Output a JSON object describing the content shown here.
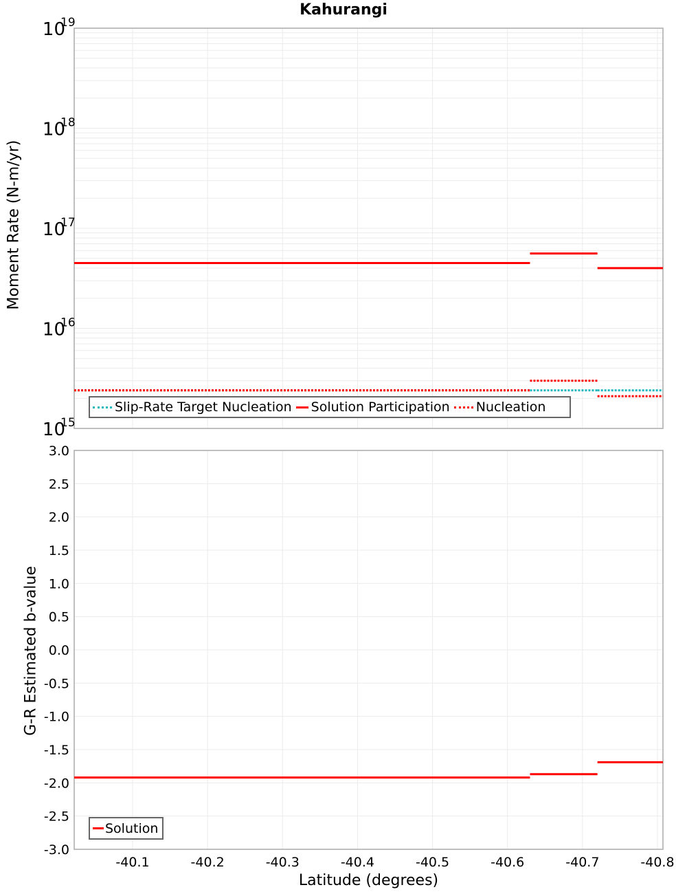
{
  "title": "Kahurangi",
  "colors": {
    "target": "#1fb8c0",
    "solution": "#ff0000",
    "grid": "#ebebeb",
    "axis": "#aaaaaa"
  },
  "top_plot": {
    "ylabel": "Moment Rate (N-m/yr)",
    "y_ticks": [
      {
        "base": "10",
        "exp": "19"
      },
      {
        "base": "10",
        "exp": "18"
      },
      {
        "base": "10",
        "exp": "17"
      },
      {
        "base": "10",
        "exp": "16"
      },
      {
        "base": "10",
        "exp": "15"
      }
    ],
    "legend": [
      {
        "label": "Slip-Rate Target Nucleation",
        "style": "dotted-cyan"
      },
      {
        "label": "Solution Participation",
        "style": "solid-red"
      },
      {
        "label": "Nucleation",
        "style": "dotted-red"
      }
    ]
  },
  "bottom_plot": {
    "ylabel": "G-R Estimated b-value",
    "y_ticks": [
      "3.0",
      "2.5",
      "2.0",
      "1.5",
      "1.0",
      "0.5",
      "0.0",
      "-0.5",
      "-1.0",
      "-1.5",
      "-2.0",
      "-2.5",
      "-3.0"
    ],
    "legend": [
      {
        "label": "Solution",
        "style": "solid-red"
      }
    ]
  },
  "x_axis": {
    "label": "Latitude (degrees)",
    "ticks": [
      "-40.1",
      "-40.2",
      "-40.3",
      "-40.4",
      "-40.5",
      "-40.6",
      "-40.7",
      "-40.8"
    ]
  },
  "chart_data": [
    {
      "type": "line",
      "title": "Kahurangi",
      "xlabel": "Latitude (degrees)",
      "ylabel": "Moment Rate (N-m/yr)",
      "yscale": "log",
      "ylim": [
        1000000000000000.0,
        1e+19
      ],
      "xlim": [
        -40.02,
        -40.81
      ],
      "legend_position": "lower-left",
      "grid": true,
      "segment_x_edges": [
        -40.02,
        -40.63,
        -40.72,
        -40.81
      ],
      "series": [
        {
          "name": "Slip-Rate Target Nucleation",
          "style": "dotted",
          "color": "#1fb8c0",
          "values": [
            2400000000000000.0,
            2400000000000000.0,
            2400000000000000.0
          ]
        },
        {
          "name": "Solution Participation",
          "style": "solid",
          "color": "#ff0000",
          "values": [
            4.5e+16,
            5.6e+16,
            4e+16
          ]
        },
        {
          "name": "Nucleation",
          "style": "dotted",
          "color": "#ff0000",
          "values": [
            2400000000000000.0,
            3000000000000000.0,
            2100000000000000.0
          ]
        }
      ]
    },
    {
      "type": "line",
      "xlabel": "Latitude (degrees)",
      "ylabel": "G-R Estimated b-value",
      "ylim": [
        -3.0,
        3.0
      ],
      "xlim": [
        -40.02,
        -40.81
      ],
      "x_ticks": [
        -40.1,
        -40.2,
        -40.3,
        -40.4,
        -40.5,
        -40.6,
        -40.7,
        -40.8
      ],
      "legend_position": "lower-left",
      "grid": true,
      "segment_x_edges": [
        -40.02,
        -40.63,
        -40.72,
        -40.81
      ],
      "series": [
        {
          "name": "Solution",
          "style": "solid",
          "color": "#ff0000",
          "values": [
            -1.92,
            -1.87,
            -1.69
          ]
        }
      ]
    }
  ]
}
